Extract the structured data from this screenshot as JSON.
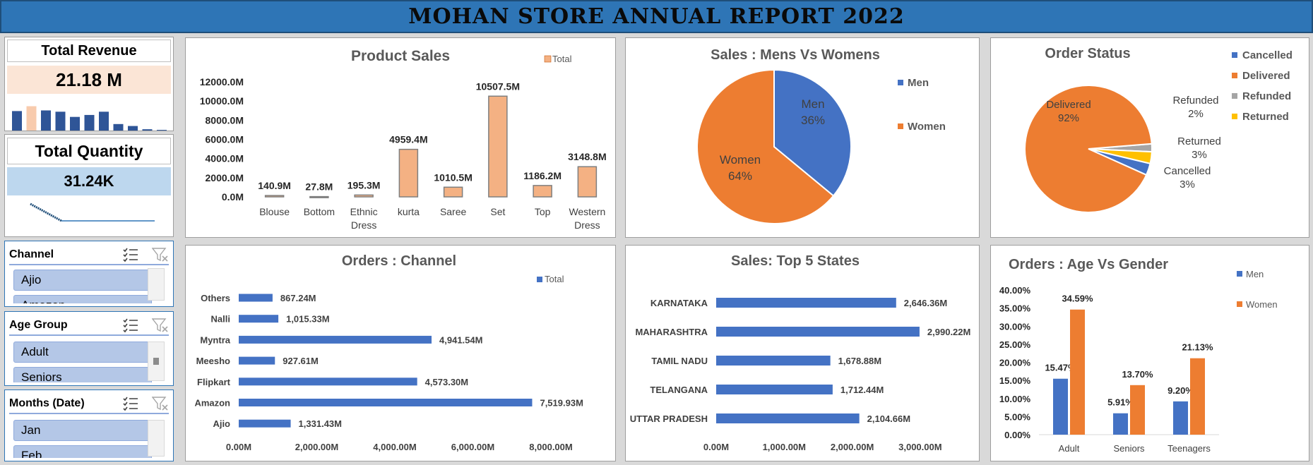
{
  "title": "MOHAN STORE ANNUAL REPORT 2022",
  "kpis": {
    "revenue": {
      "title": "Total Revenue",
      "value": "21.18 M",
      "spark": [
        0.6,
        0.75,
        0.62,
        0.58,
        0.42,
        0.48,
        0.58,
        0.2,
        0.14,
        0.04,
        0.02
      ]
    },
    "quantity": {
      "title": "Total Quantity",
      "value": "31.24K"
    }
  },
  "slicers": {
    "channel": {
      "title": "Channel",
      "items": [
        "Ajio",
        "Amazon"
      ]
    },
    "age": {
      "title": "Age Group",
      "items": [
        "Adult",
        "Seniors"
      ]
    },
    "months": {
      "title": "Months (Date)",
      "items": [
        "Jan",
        "Feb"
      ]
    }
  },
  "chart_data": [
    {
      "type": "bar",
      "title": "Product Sales",
      "legend": [
        "Total"
      ],
      "categories": [
        "Blouse",
        "Bottom",
        "Ethnic Dress",
        "kurta",
        "Saree",
        "Set",
        "Top",
        "Western Dress"
      ],
      "values": [
        140.9,
        27.8,
        195.3,
        4959.4,
        1010.5,
        10507.5,
        1186.2,
        3148.8
      ],
      "labels": [
        "140.9M",
        "27.8M",
        "195.3M",
        "4959.4M",
        "1010.5M",
        "10507.5M",
        "1186.2M",
        "3148.8M"
      ],
      "yticks": [
        "0.0M",
        "2000.0M",
        "4000.0M",
        "6000.0M",
        "8000.0M",
        "10000.0M",
        "12000.0M"
      ],
      "ylim": [
        0,
        12000
      ],
      "color": "#f4b183"
    },
    {
      "type": "pie",
      "title": "Sales : Mens Vs Womens",
      "slices": [
        {
          "name": "Men",
          "value": 36,
          "label": "Men",
          "pct": "36%",
          "color": "#4472c4"
        },
        {
          "name": "Women",
          "value": 64,
          "label": "Women",
          "pct": "64%",
          "color": "#ed7d31"
        }
      ]
    },
    {
      "type": "pie",
      "title": "Order Status",
      "slices": [
        {
          "name": "Cancelled",
          "value": 3,
          "label": "Cancelled",
          "pct": "3%",
          "color": "#4472c4"
        },
        {
          "name": "Delivered",
          "value": 92,
          "label": "Delivered",
          "pct": "92%",
          "color": "#ed7d31"
        },
        {
          "name": "Refunded",
          "value": 2,
          "label": "Refunded",
          "pct": "2%",
          "color": "#a5a5a5"
        },
        {
          "name": "Returned",
          "value": 3,
          "label": "Returned",
          "pct": "3%",
          "color": "#ffc000"
        }
      ]
    },
    {
      "type": "bar",
      "orientation": "horizontal",
      "title": "Orders : Channel",
      "legend": [
        "Total"
      ],
      "categories": [
        "Others",
        "Nalli",
        "Myntra",
        "Meesho",
        "Flipkart",
        "Amazon",
        "Ajio"
      ],
      "values": [
        867.24,
        1015.33,
        4941.54,
        927.61,
        4573.3,
        7519.93,
        1331.43
      ],
      "labels": [
        "867.24M",
        "1,015.33M",
        "4,941.54M",
        "927.61M",
        "4,573.30M",
        "7,519.93M",
        "1,331.43M"
      ],
      "xticks": [
        "0.00M",
        "2,000.00M",
        "4,000.00M",
        "6,000.00M",
        "8,000.00M"
      ],
      "xlim": [
        0,
        8000
      ],
      "color": "#4472c4"
    },
    {
      "type": "bar",
      "orientation": "horizontal",
      "title": "Sales: Top 5 States",
      "categories": [
        "KARNATAKA",
        "MAHARASHTRA",
        "TAMIL NADU",
        "TELANGANA",
        "UTTAR PRADESH"
      ],
      "values": [
        2646.36,
        2990.22,
        1678.88,
        1712.44,
        2104.66
      ],
      "labels": [
        "2,646.36M",
        "2,990.22M",
        "1,678.88M",
        "1,712.44M",
        "2,104.66M"
      ],
      "xticks": [
        "0.00M",
        "1,000.00M",
        "2,000.00M",
        "3,000.00M"
      ],
      "xlim": [
        0,
        3500
      ],
      "color": "#4472c4"
    },
    {
      "type": "bar",
      "title": "Orders : Age Vs Gender",
      "categories": [
        "Adult",
        "Seniors",
        "Teenagers"
      ],
      "series": [
        {
          "name": "Men",
          "values": [
            15.47,
            5.91,
            9.2
          ],
          "labels": [
            "15.47%",
            "5.91%",
            "9.20%"
          ],
          "color": "#4472c4"
        },
        {
          "name": "Women",
          "values": [
            34.59,
            13.7,
            21.13
          ],
          "labels": [
            "34.59%",
            "13.70%",
            "21.13%"
          ],
          "color": "#ed7d31"
        }
      ],
      "yticks": [
        "0.00%",
        "5.00%",
        "10.00%",
        "15.00%",
        "20.00%",
        "25.00%",
        "30.00%",
        "35.00%",
        "40.00%"
      ],
      "ylim": [
        0,
        40
      ]
    }
  ]
}
